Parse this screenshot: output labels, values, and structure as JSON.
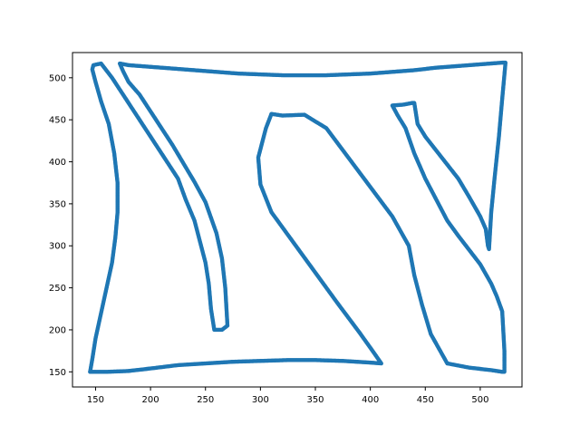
{
  "chart_data": {
    "type": "scatter",
    "title": "",
    "xlabel": "",
    "ylabel": "",
    "xlim": [
      129,
      538
    ],
    "ylim": [
      132,
      530
    ],
    "xticks": [
      150,
      200,
      250,
      300,
      350,
      400,
      450,
      500
    ],
    "yticks": [
      150,
      200,
      250,
      300,
      350,
      400,
      450,
      500
    ],
    "grid": false,
    "series": [
      {
        "color": "#1f77b4",
        "marker": "circle",
        "x": [
          145,
          147,
          150,
          160,
          180,
          200,
          225,
          250,
          275,
          300,
          325,
          350,
          375,
          400,
          410,
          402,
          390,
          370,
          350,
          330,
          310,
          300,
          298,
          305,
          310,
          320,
          340,
          360,
          380,
          400,
          420,
          435,
          440,
          447,
          455,
          470,
          490,
          510,
          520,
          522,
          522,
          520,
          515,
          510,
          500,
          490,
          480,
          470,
          460,
          450,
          440,
          432,
          425,
          420,
          430,
          438,
          440,
          443,
          450,
          465,
          480,
          490,
          500,
          505,
          507,
          508,
          510,
          513,
          517,
          520,
          523,
          520,
          500,
          480,
          460,
          440,
          420,
          400,
          380,
          360,
          340,
          320,
          300,
          280,
          260,
          240,
          220,
          200,
          180,
          172,
          175,
          180,
          190,
          200,
          210,
          220,
          230,
          240,
          250,
          260,
          265,
          268,
          270,
          265,
          258,
          255,
          253,
          250,
          245,
          240,
          232,
          225,
          215,
          205,
          195,
          185,
          175,
          165,
          155,
          148,
          147,
          150,
          155,
          162,
          167,
          170,
          170,
          168,
          165,
          160,
          155,
          150,
          147,
          145
        ],
        "y": [
          150,
          150,
          150,
          150,
          151,
          154,
          158,
          160,
          162,
          163,
          164,
          164,
          163,
          161,
          160,
          175,
          197,
          232,
          268,
          304,
          340,
          373,
          405,
          440,
          457,
          455,
          456,
          440,
          405,
          370,
          335,
          300,
          265,
          230,
          195,
          160,
          155,
          152,
          150,
          150,
          175,
          222,
          240,
          255,
          278,
          295,
          312,
          330,
          355,
          380,
          410,
          440,
          455,
          467,
          468,
          470,
          470,
          445,
          430,
          405,
          380,
          358,
          335,
          320,
          300,
          296,
          340,
          380,
          430,
          475,
          518,
          518,
          516,
          514,
          512,
          509,
          507,
          505,
          504,
          503,
          503,
          503,
          504,
          505,
          507,
          509,
          511,
          513,
          515,
          517,
          508,
          495,
          480,
          460,
          440,
          420,
          398,
          376,
          352,
          315,
          285,
          250,
          205,
          200,
          200,
          225,
          255,
          280,
          305,
          330,
          355,
          380,
          400,
          420,
          440,
          460,
          480,
          500,
          517,
          515,
          510,
          495,
          472,
          445,
          410,
          375,
          340,
          310,
          280,
          250,
          220,
          190,
          165,
          150
        ]
      }
    ]
  }
}
